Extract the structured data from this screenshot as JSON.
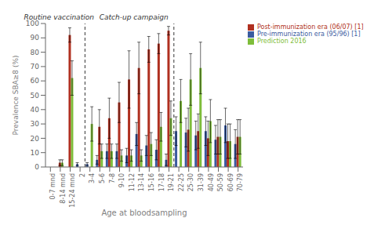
{
  "chart_data": {
    "type": "bar",
    "categories": [
      "0-7 mnd",
      "8-14 mnd",
      "15-24 mnd",
      "2",
      "3-4",
      "5-6",
      "7-8",
      "9-10",
      "11-12",
      "13-14",
      "15-16",
      "17-18",
      "19-21",
      "22-25",
      "25-30",
      "31-39",
      "40-49",
      "50-59",
      "60-69",
      "70-79"
    ],
    "series": [
      {
        "name": "Pre-immunization era (95/96) [1]",
        "color": "#3A5BA0",
        "values": [
          0,
          0,
          0,
          2,
          2,
          5,
          11,
          11,
          8,
          23,
          15,
          12,
          5,
          25,
          24,
          22,
          25,
          19,
          29,
          16
        ],
        "errors": [
          0,
          1,
          0,
          1,
          1,
          3,
          5,
          5,
          5,
          8,
          7,
          7,
          4,
          10,
          10,
          10,
          10,
          10,
          12,
          10
        ]
      },
      {
        "name": "Post-immunization era (06/07) [1]",
        "color": "#B03020",
        "values": [
          0,
          3,
          92,
          0,
          0,
          28,
          34,
          45,
          61,
          69,
          82,
          86,
          95,
          0,
          26,
          25,
          20,
          21,
          18,
          21
        ],
        "errors": [
          0,
          2,
          5,
          0,
          0,
          12,
          14,
          14,
          20,
          18,
          9,
          7,
          3,
          0,
          15,
          12,
          12,
          12,
          12,
          12
        ]
      },
      {
        "name": "Prediction 2016",
        "color": "#7EBD3A",
        "values": [
          0,
          3,
          62,
          0,
          30,
          11,
          11,
          8,
          8,
          8,
          16,
          28,
          34,
          46,
          61,
          69,
          32,
          21,
          18,
          21
        ],
        "errors": [
          0,
          2,
          12,
          0,
          12,
          5,
          5,
          4,
          4,
          4,
          8,
          10,
          12,
          15,
          18,
          18,
          15,
          12,
          12,
          12
        ]
      }
    ],
    "xlabel": "Age at bloodsampling",
    "ylabel": "Prevalence SBA≥8 (%)",
    "ylim": [
      0,
      100
    ],
    "yticks": [
      0,
      10,
      20,
      30,
      40,
      50,
      60,
      70,
      80,
      90,
      100
    ],
    "grid": false,
    "legend": "right",
    "annotations": [
      {
        "text": "Routine vaccination",
        "x": 1.3
      },
      {
        "text": "Catch-up campaign",
        "x": 8.5
      }
    ],
    "dashed_lines_before": [
      "3-4",
      "22-25"
    ]
  }
}
